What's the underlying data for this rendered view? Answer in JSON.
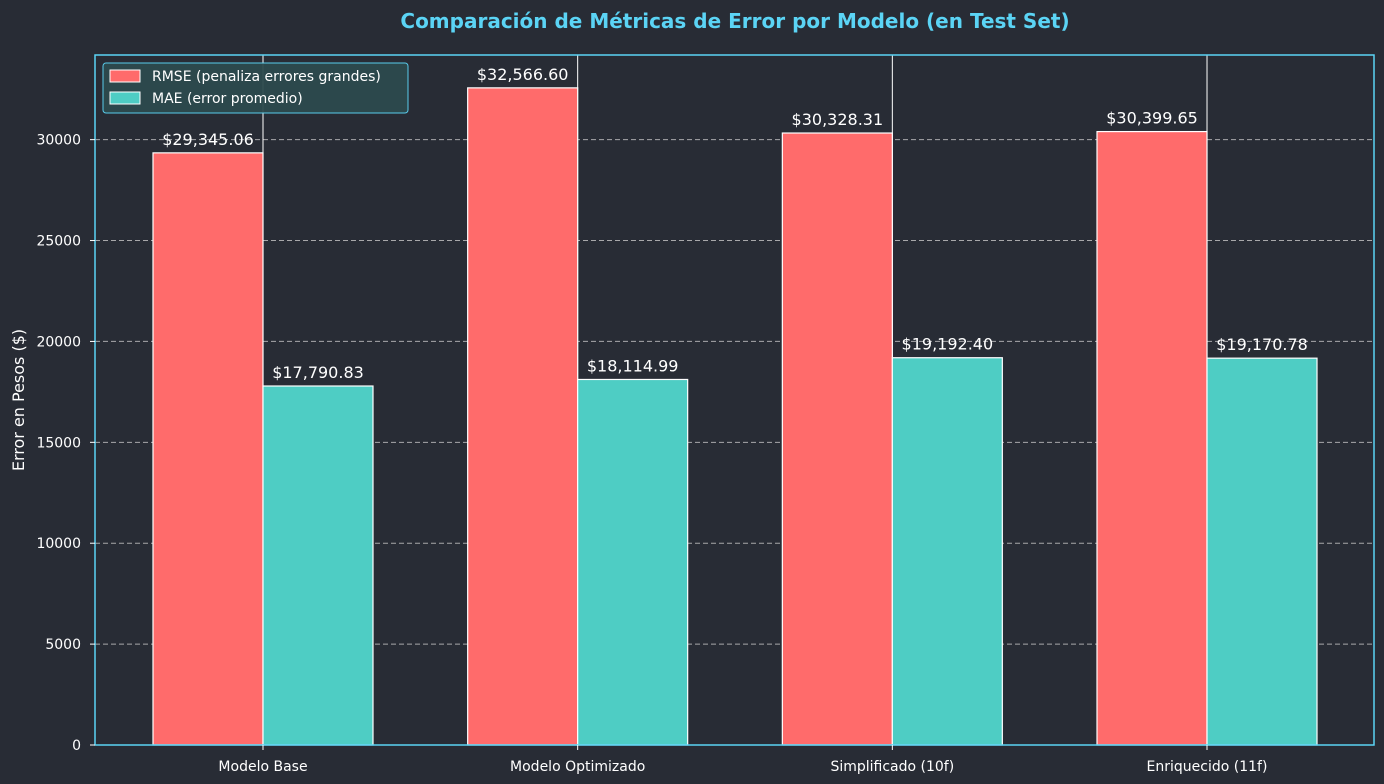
{
  "chart_data": {
    "type": "bar",
    "title": "Comparación de Métricas de Error por Modelo (en Test Set)",
    "xlabel": "",
    "ylabel": "Error en Pesos ($)",
    "categories": [
      "Modelo Base",
      "Modelo Optimizado",
      "Simplificado (10f)",
      "Enriquecido (11f)"
    ],
    "series": [
      {
        "name": "RMSE (penaliza errores grandes)",
        "values": [
          29345.06,
          32566.6,
          30328.31,
          30399.65
        ],
        "labels": [
          "$29,345.06",
          "$32,566.60",
          "$30,328.31",
          "$30,399.65"
        ],
        "color": "#ff6b6b"
      },
      {
        "name": "MAE (error promedio)",
        "values": [
          17790.83,
          18114.99,
          19192.4,
          19170.78
        ],
        "labels": [
          "$17,790.83",
          "$18,114.99",
          "$19,192.40",
          "$19,170.78"
        ],
        "color": "#4ecdc4"
      }
    ],
    "yticks": [
      0,
      5000,
      10000,
      15000,
      20000,
      25000,
      30000
    ],
    "ylim": [
      0,
      34195
    ],
    "grid": true,
    "legend_position": "top-left",
    "colors": {
      "background": "#282c35",
      "title": "#5bd4f5",
      "axes_border": "#5bd4f5",
      "text": "#ffffff",
      "grid": "#c8c8c8"
    }
  }
}
